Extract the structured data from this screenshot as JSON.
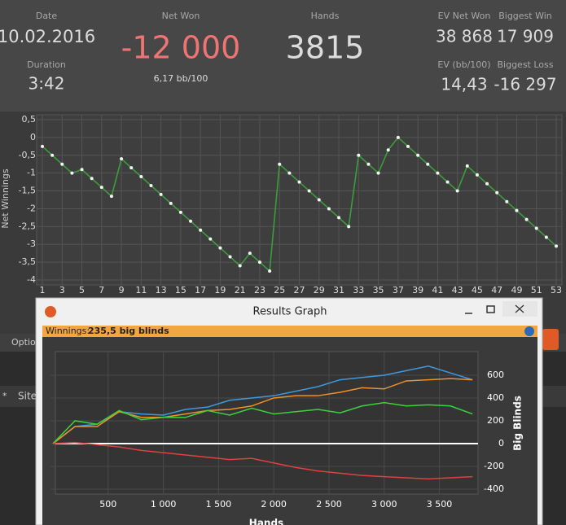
{
  "header": {
    "date": {
      "label": "Date",
      "value": "10.02.2016"
    },
    "duration": {
      "label": "Duration",
      "value": "3:42"
    },
    "net_won": {
      "label": "Net Won",
      "value": "-12 000",
      "sub": "6,17 bb/100"
    },
    "hands": {
      "label": "Hands",
      "value": "3815"
    },
    "ev_net_won": {
      "label": "EV Net Won",
      "value": "38 868"
    },
    "biggest_win": {
      "label": "Biggest Win",
      "value": "17 909"
    },
    "ev_bb": {
      "label": "EV (bb/100)",
      "value": "14,43"
    },
    "biggest_loss": {
      "label": "Biggest Loss",
      "value": "-16 297"
    }
  },
  "background": {
    "tab": "Optio",
    "column_star": "*",
    "column_site": "Site"
  },
  "window": {
    "title": "Results Graph",
    "winnings_label": "Winnings:",
    "winnings_value": "235,5 big blinds"
  },
  "chart_data": [
    {
      "type": "line",
      "ylabel": "Net Winnings",
      "x": [
        1,
        2,
        3,
        4,
        5,
        6,
        7,
        8,
        9,
        10,
        11,
        12,
        13,
        14,
        15,
        16,
        17,
        18,
        19,
        20,
        21,
        22,
        23,
        24,
        25,
        26,
        27,
        28,
        29,
        30,
        31,
        32,
        33,
        34,
        35,
        36,
        37,
        38,
        39,
        40,
        41,
        42,
        43,
        44,
        45,
        46,
        47,
        48,
        49,
        50,
        51,
        52,
        53
      ],
      "xlim": [
        1,
        53
      ],
      "xticks": [
        1,
        3,
        5,
        7,
        9,
        11,
        13,
        15,
        17,
        19,
        21,
        23,
        25,
        27,
        29,
        31,
        33,
        35,
        37,
        39,
        41,
        43,
        45,
        47,
        49,
        51,
        53
      ],
      "ylim": [
        -4,
        0.5
      ],
      "yticks": [
        {
          "value": 0.5,
          "label": "0,5"
        },
        0,
        {
          "value": -0.5,
          "label": "-0,5"
        },
        -1,
        {
          "value": -1.5,
          "label": "-1,5"
        },
        -2,
        {
          "value": -2.5,
          "label": "-2,5"
        },
        -3,
        {
          "value": -3.5,
          "label": "-3,5"
        },
        -4
      ],
      "grid": true,
      "markers": true,
      "series": [
        {
          "name": "Net Winnings",
          "color": "#3c9c3c",
          "values": [
            -0.25,
            -0.5,
            -0.75,
            -1.0,
            -0.9,
            -1.15,
            -1.4,
            -1.65,
            -0.6,
            -0.85,
            -1.1,
            -1.35,
            -1.6,
            -1.85,
            -2.1,
            -2.35,
            -2.6,
            -2.85,
            -3.1,
            -3.35,
            -3.6,
            -3.25,
            -3.5,
            -3.75,
            -0.75,
            -1.0,
            -1.25,
            -1.5,
            -1.75,
            -2.0,
            -2.25,
            -2.5,
            -0.5,
            -0.75,
            -1.0,
            -0.35,
            0.0,
            -0.25,
            -0.5,
            -0.75,
            -1.0,
            -1.25,
            -1.5,
            -0.8,
            -1.05,
            -1.3,
            -1.55,
            -1.8,
            -2.05,
            -2.3,
            -2.55,
            -2.8,
            -3.05
          ]
        }
      ]
    },
    {
      "type": "line",
      "xlabel": "Hands",
      "ylabel": "Big Blinds",
      "x": [
        0,
        200,
        400,
        600,
        800,
        1000,
        1200,
        1400,
        1600,
        1800,
        2000,
        2200,
        2400,
        2600,
        2800,
        3000,
        3200,
        3400,
        3600,
        3800
      ],
      "xlim": [
        0,
        3850
      ],
      "xticks": [
        500,
        {
          "value": 1000,
          "label": "1 000"
        },
        {
          "value": 1500,
          "label": "1 500"
        },
        {
          "value": 2000,
          "label": "2 000"
        },
        {
          "value": 2500,
          "label": "2 500"
        },
        {
          "value": 3000,
          "label": "3 000"
        },
        {
          "value": 3500,
          "label": "3 500"
        }
      ],
      "ylim": [
        -443,
        807
      ],
      "yticks": [
        -400,
        -200,
        0,
        200,
        400,
        600
      ],
      "grid": true,
      "markers": false,
      "series": [
        {
          "name": "blue",
          "color": "#3d9ae0",
          "values": [
            0,
            150,
            170,
            280,
            260,
            250,
            300,
            320,
            380,
            400,
            420,
            460,
            500,
            560,
            580,
            600,
            640,
            680,
            620,
            560
          ]
        },
        {
          "name": "orange",
          "color": "#f0902c",
          "values": [
            0,
            150,
            150,
            280,
            230,
            230,
            260,
            290,
            300,
            330,
            400,
            420,
            420,
            450,
            490,
            480,
            550,
            560,
            570,
            560
          ]
        },
        {
          "name": "green",
          "color": "#3cd23c",
          "values": [
            0,
            200,
            170,
            290,
            210,
            230,
            230,
            290,
            250,
            310,
            260,
            280,
            300,
            270,
            330,
            360,
            330,
            340,
            330,
            260
          ]
        },
        {
          "name": "red",
          "color": "#e04040",
          "values": [
            0,
            10,
            -10,
            -30,
            -60,
            -80,
            -100,
            -120,
            -140,
            -130,
            -170,
            -210,
            -240,
            -260,
            -280,
            -290,
            -300,
            -310,
            -300,
            -290
          ]
        }
      ]
    }
  ]
}
